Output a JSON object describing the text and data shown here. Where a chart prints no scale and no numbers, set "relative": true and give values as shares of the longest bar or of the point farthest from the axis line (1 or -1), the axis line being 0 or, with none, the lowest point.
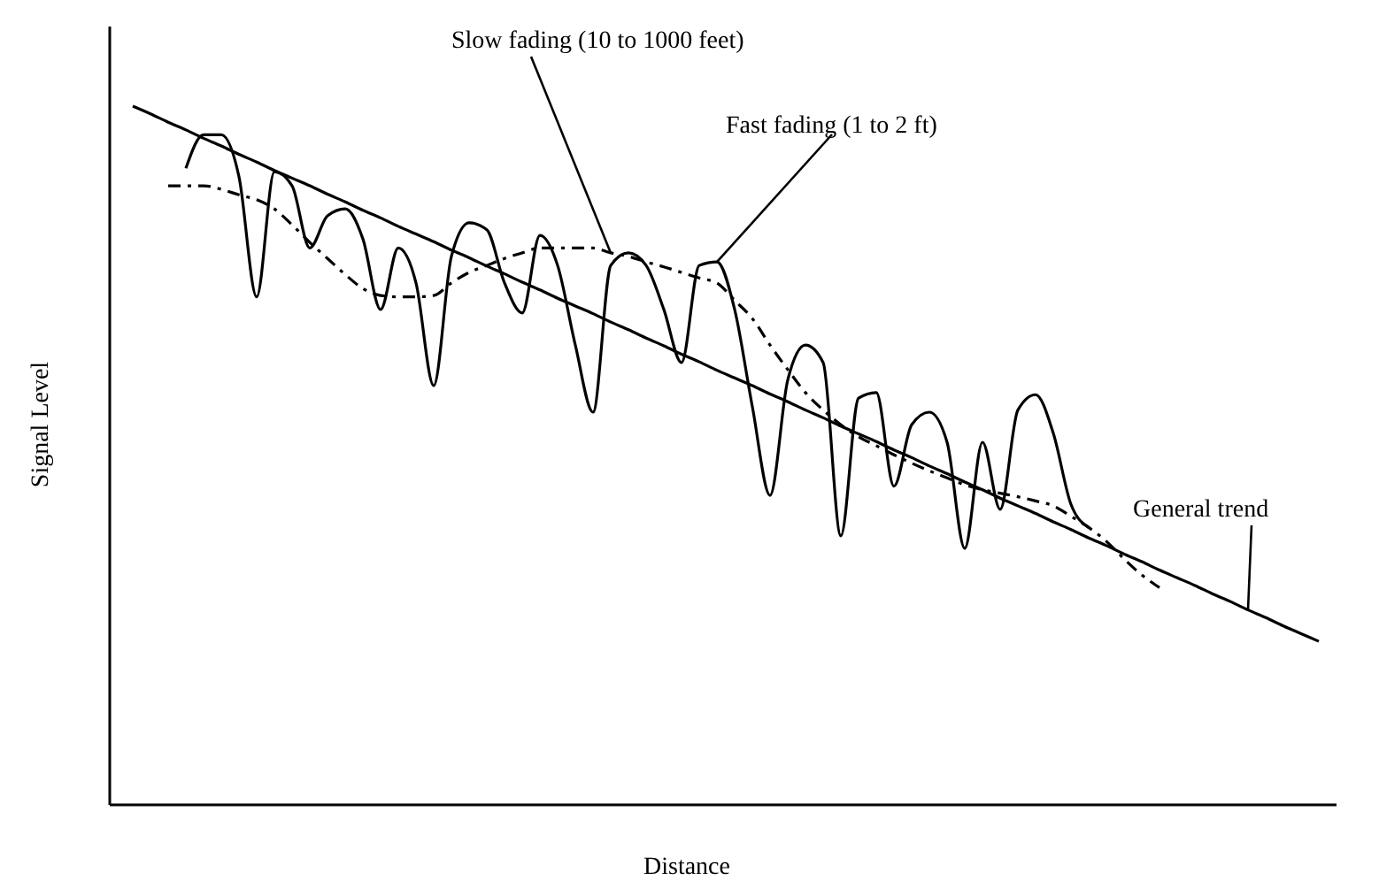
{
  "chart_data": {
    "type": "line",
    "xlabel": "Distance",
    "ylabel": "Signal Level",
    "relative": true,
    "marker": "none",
    "categories": [
      null,
      null,
      null,
      null,
      null,
      null,
      null,
      null,
      null,
      null,
      null,
      null,
      null,
      null,
      null,
      null,
      null,
      null,
      null,
      null,
      null,
      null,
      null,
      null,
      null,
      null,
      null,
      null,
      null,
      null,
      null,
      null,
      null,
      null,
      null,
      null,
      null,
      null,
      null,
      null,
      null,
      null,
      null,
      null,
      null,
      null,
      null,
      null,
      null,
      null,
      null,
      null,
      null,
      null,
      null,
      null,
      null,
      null,
      null,
      null,
      null,
      null,
      null,
      null,
      null,
      null,
      null,
      null
    ],
    "series": [
      {
        "name": "Slow fading (10 to 1000 feet)",
        "color": "#000000",
        "line_style": "dashed",
        "values": [
          null,
          null,
          0.886,
          0.886,
          0.886,
          0.881,
          0.873,
          0.866,
          0.853,
          0.83,
          0.805,
          0.782,
          0.759,
          0.739,
          0.729,
          0.727,
          0.727,
          0.729,
          0.747,
          0.762,
          0.772,
          0.782,
          0.79,
          0.797,
          0.797,
          0.797,
          0.797,
          0.79,
          0.785,
          0.777,
          0.77,
          0.762,
          0.754,
          0.747,
          0.722,
          0.696,
          0.658,
          0.623,
          0.59,
          0.565,
          0.544,
          0.527,
          0.514,
          0.501,
          0.489,
          0.478,
          0.468,
          0.458,
          0.451,
          0.446,
          0.441,
          0.435,
          0.428,
          0.413,
          0.397,
          0.377,
          0.352,
          0.329,
          0.311,
          null,
          null,
          null,
          null,
          null,
          null,
          null,
          null,
          null
        ]
      },
      {
        "name": "Fast fading (1 to 2 ft)",
        "color": "#000000",
        "line_style": "solid",
        "values": [
          null,
          null,
          null,
          0.911,
          0.959,
          0.959,
          0.899,
          0.727,
          0.906,
          0.886,
          0.797,
          0.843,
          0.853,
          0.81,
          0.709,
          0.797,
          0.747,
          0.6,
          0.785,
          0.833,
          0.823,
          0.747,
          0.704,
          0.815,
          0.772,
          0.658,
          0.562,
          0.772,
          0.79,
          0.772,
          0.709,
          0.633,
          0.772,
          0.777,
          0.709,
          0.57,
          0.443,
          0.608,
          0.658,
          0.633,
          0.385,
          0.582,
          0.59,
          0.456,
          0.544,
          0.562,
          0.519,
          0.367,
          0.519,
          0.423,
          0.565,
          0.587,
          0.532,
          0.43,
          0.397,
          null,
          null,
          null,
          null,
          null,
          null,
          null,
          null,
          null,
          null,
          null,
          null,
          null
        ]
      },
      {
        "name": "General trend",
        "color": "#000000",
        "line_style": "solid",
        "values": [
          1.0,
          0.989,
          0.977,
          0.966,
          0.954,
          0.943,
          0.931,
          0.92,
          0.908,
          0.897,
          0.886,
          0.874,
          0.863,
          0.851,
          0.84,
          0.828,
          0.817,
          0.806,
          0.794,
          0.783,
          0.771,
          0.76,
          0.748,
          0.737,
          0.725,
          0.714,
          0.703,
          0.691,
          0.68,
          0.668,
          0.657,
          0.645,
          0.634,
          0.622,
          0.611,
          0.6,
          0.588,
          0.577,
          0.565,
          0.554,
          0.542,
          0.531,
          0.52,
          0.508,
          0.497,
          0.485,
          0.474,
          0.462,
          0.451,
          0.439,
          0.428,
          0.417,
          0.405,
          0.394,
          0.382,
          0.371,
          0.359,
          0.348,
          0.336,
          0.325,
          0.314,
          0.302,
          0.291,
          0.279,
          0.268,
          0.256,
          0.245,
          0.234
        ]
      }
    ]
  }
}
